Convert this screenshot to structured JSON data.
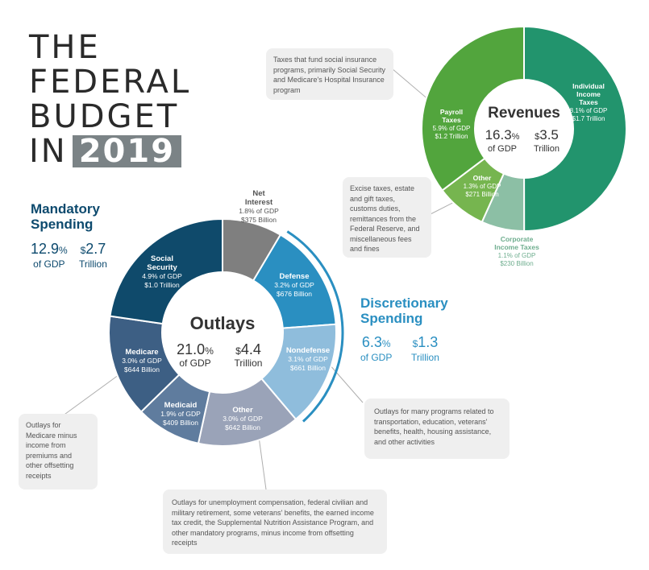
{
  "title": {
    "line1": "THE",
    "line2": "FEDERAL",
    "line3": "BUDGET",
    "line4_prefix": "IN",
    "year": "2019"
  },
  "colors": {
    "mandatory": "#0d4a6e",
    "discretionary": "#2a8fc1",
    "revenues_green": "#22946d",
    "payroll_green": "#52a53d",
    "other_rev": "#76b54f",
    "corporate": "#8cbfa5"
  },
  "mandatory": {
    "title_l1": "Mandatory",
    "title_l2": "Spending",
    "gdp": "12.9",
    "gdp_unit": "%",
    "gdp_label": "of GDP",
    "amount_sym": "$",
    "amount": "2.7",
    "amount_label": "Trillion"
  },
  "discretionary": {
    "title_l1": "Discretionary",
    "title_l2": "Spending",
    "gdp": "6.3",
    "gdp_unit": "%",
    "gdp_label": "of GDP",
    "amount_sym": "$",
    "amount": "1.3",
    "amount_label": "Trillion"
  },
  "outlays_center": {
    "title": "Outlays",
    "gdp": "21.0",
    "gdp_unit": "%",
    "gdp_label": "of GDP",
    "amount_sym": "$",
    "amount": "4.4",
    "amount_label": "Trillion"
  },
  "revenues_center": {
    "title": "Revenues",
    "gdp": "16.3",
    "gdp_unit": "%",
    "gdp_label": "of GDP",
    "amount_sym": "$",
    "amount": "3.5",
    "amount_label": "Trillion"
  },
  "notes": {
    "payroll": "Taxes that fund social insurance programs, primarily Social Security and Medicare's Hospital Insurance program",
    "other_rev": "Excise taxes, estate and gift taxes, customs duties, remittances from the Federal Reserve, and miscellaneous fees and fines",
    "nondefense": "Outlays for many programs related to transportation, education, veterans' benefits, health, housing assistance, and other activities",
    "medicare": "Outlays for Medicare minus income from premiums and other offsetting receipts",
    "other_out": "Outlays for unemployment compensation, federal civilian and military retirement, some veterans' benefits, the earned income tax credit, the Supplemental Nutrition Assistance Program, and other mandatory programs, minus income from offsetting receipts"
  },
  "chart_data": [
    {
      "type": "pie",
      "title": "Outlays",
      "unit": "Billion",
      "slices": [
        {
          "name_lines": [
            "Net",
            "Interest"
          ],
          "gdp": "1.8% of GDP",
          "amount": "$375 Billion",
          "value": 375,
          "color": "#7f7f7f",
          "group": "Net Interest"
        },
        {
          "name_lines": [
            "Defense"
          ],
          "gdp": "3.2% of GDP",
          "amount": "$676 Billion",
          "value": 676,
          "color": "#2a8fc1",
          "group": "Discretionary"
        },
        {
          "name_lines": [
            "Nondefense"
          ],
          "gdp": "3.1% of GDP",
          "amount": "$661 Billion",
          "value": 661,
          "color": "#8fbddc",
          "group": "Discretionary"
        },
        {
          "name_lines": [
            "Other"
          ],
          "gdp": "3.0% of GDP",
          "amount": "$642 Billion",
          "value": 642,
          "color": "#9aa3b8",
          "group": "Mandatory"
        },
        {
          "name_lines": [
            "Medicaid"
          ],
          "gdp": "1.9% of GDP",
          "amount": "$409 Billion",
          "value": 409,
          "color": "#5f7c9e",
          "group": "Mandatory"
        },
        {
          "name_lines": [
            "Medicare"
          ],
          "gdp": "3.0% of GDP",
          "amount": "$644 Billion",
          "value": 644,
          "color": "#3d5f84",
          "group": "Mandatory"
        },
        {
          "name_lines": [
            "Social",
            "Security"
          ],
          "gdp": "4.9% of GDP",
          "amount": "$1.0 Trillion",
          "value": 1000,
          "color": "#0f4a6b",
          "group": "Mandatory"
        }
      ]
    },
    {
      "type": "pie",
      "title": "Revenues",
      "unit": "Billion",
      "slices": [
        {
          "name_lines": [
            "Individual",
            "Income",
            "Taxes"
          ],
          "gdp": "8.1% of GDP",
          "amount": "$1.7 Trillion",
          "value": 1700,
          "color": "#22946d"
        },
        {
          "name_lines": [
            "Corporate",
            "Income Taxes"
          ],
          "gdp": "1.1% of GDP",
          "amount": "$230 Billion",
          "value": 230,
          "color": "#8cbfa5"
        },
        {
          "name_lines": [
            "Other"
          ],
          "gdp": "1.3% of GDP",
          "amount": "$271 Billion",
          "value": 271,
          "color": "#76b54f"
        },
        {
          "name_lines": [
            "Payroll",
            "Taxes"
          ],
          "gdp": "5.9% of GDP",
          "amount": "$1.2 Trillion",
          "value": 1200,
          "color": "#52a53d"
        }
      ]
    }
  ]
}
